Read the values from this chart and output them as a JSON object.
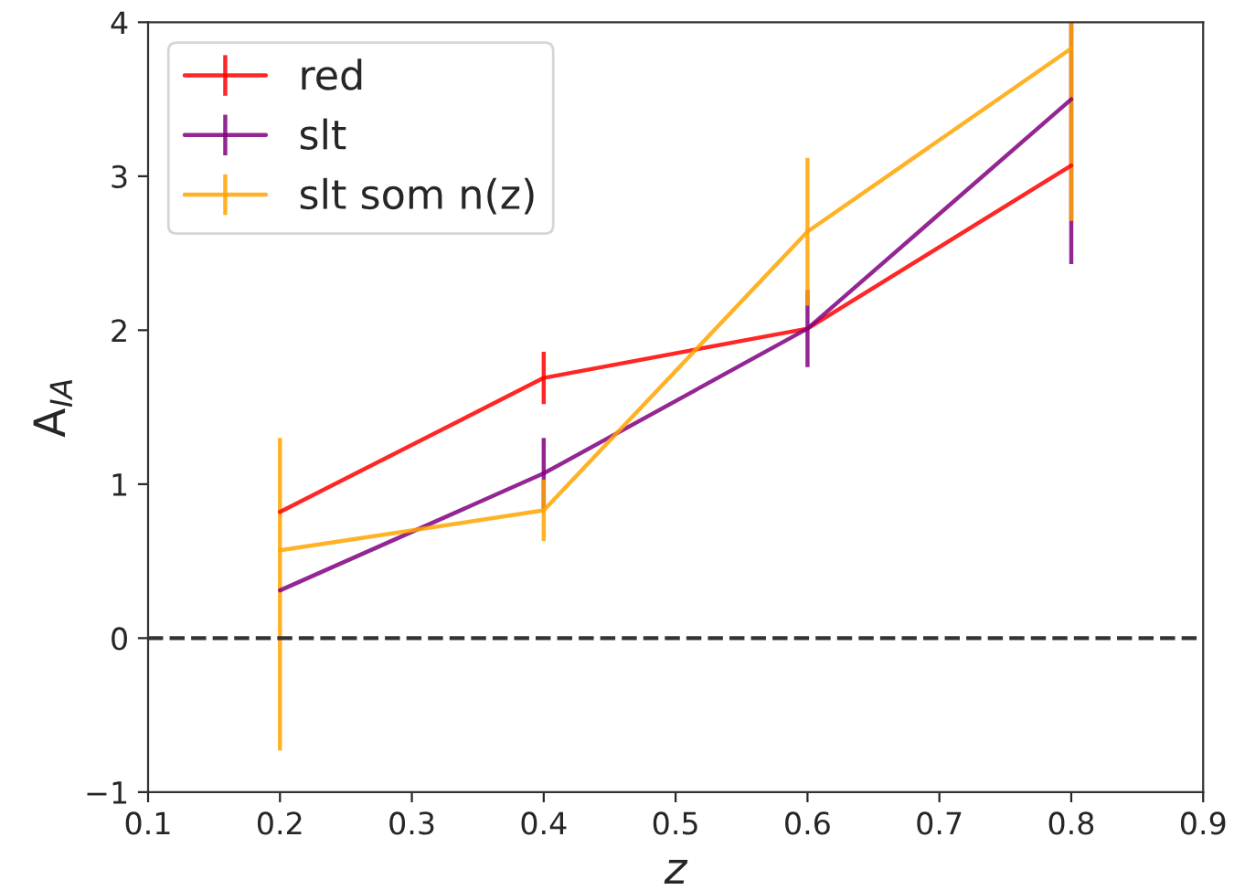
{
  "chart_data": {
    "type": "line",
    "xlabel": "z",
    "ylabel": "A$_{IA}$",
    "x": [
      0.2,
      0.4,
      0.6,
      0.8
    ],
    "series": [
      {
        "name": "red",
        "color": "#ff0000",
        "values": [
          0.82,
          1.69,
          2.01,
          3.07
        ],
        "errors": [
          null,
          0.17,
          null,
          null
        ]
      },
      {
        "name": "slt",
        "color": "#800080",
        "values": [
          0.31,
          1.07,
          2.01,
          3.5
        ],
        "errors": [
          null,
          0.23,
          0.25,
          [
            2.43,
            4
          ]
        ]
      },
      {
        "name": "slt som n(z)",
        "color": "#ffa500",
        "values": [
          0.57,
          0.83,
          2.64,
          3.83
        ],
        "errors": [
          [
            -0.73,
            1.3
          ],
          0.2,
          0.48,
          [
            2.71,
            4
          ]
        ]
      }
    ],
    "xlim": [
      0.1,
      0.9
    ],
    "xticks": [
      0.1,
      0.2,
      0.3,
      0.4,
      0.5,
      0.6,
      0.7,
      0.8,
      0.9
    ],
    "ylim": [
      -1,
      4
    ],
    "yticks": [
      {
        "value": -1,
        "label": "−1"
      },
      0,
      1,
      2,
      3,
      4
    ],
    "ref_lines": [
      {
        "axis": "y",
        "value": 0,
        "color": "#333333",
        "line_style": "dashed"
      }
    ],
    "legend": "top left",
    "grid": false
  }
}
